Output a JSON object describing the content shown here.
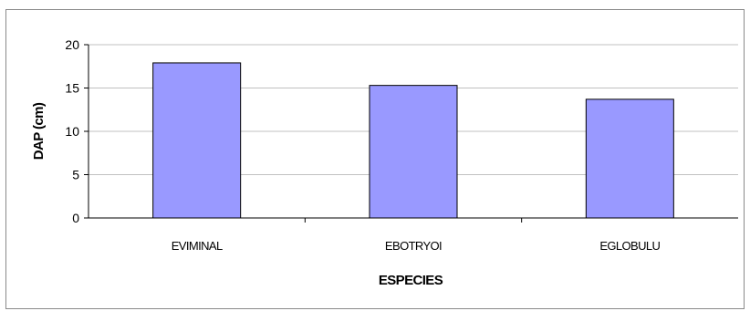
{
  "chart_data": {
    "type": "bar",
    "categories": [
      "EVIMINAL",
      "EBOTRYOI",
      "EGLOBULU"
    ],
    "values": [
      17.9,
      15.3,
      13.7
    ],
    "title": "",
    "xlabel": "ESPECIES",
    "ylabel": "DAP (cm)",
    "ylim": [
      0,
      20
    ],
    "yticks": [
      0,
      5,
      10,
      15,
      20
    ],
    "grid": true,
    "bar_color": "#9999ff",
    "bar_edge_color": "#000000",
    "grid_color": "#c0c0c0"
  }
}
